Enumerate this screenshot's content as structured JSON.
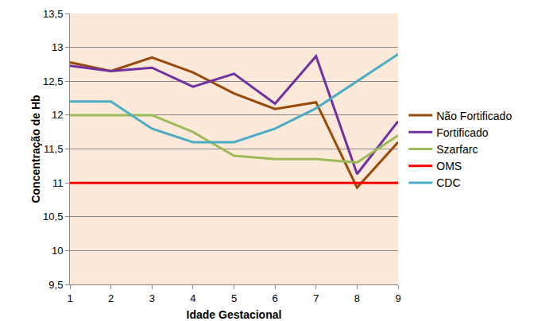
{
  "chart_data": {
    "type": "line",
    "x_label": "Idade Gestacional",
    "y_label": "Concentração de Hb",
    "categories": [
      "1",
      "2",
      "3",
      "4",
      "5",
      "6",
      "7",
      "8",
      "9"
    ],
    "series": [
      {
        "name": "Não Fortificado",
        "color": "#984807",
        "values": [
          12.78,
          12.65,
          12.85,
          12.63,
          12.32,
          12.09,
          12.19,
          10.93,
          11.6
        ]
      },
      {
        "name": "Fortificado",
        "color": "#7030a0",
        "values": [
          12.73,
          12.65,
          12.7,
          12.42,
          12.61,
          12.17,
          12.87,
          11.13,
          11.91
        ]
      },
      {
        "name": "Szarfarc",
        "color": "#9bbb59",
        "values": [
          12.0,
          12.0,
          12.0,
          11.75,
          11.4,
          11.35,
          11.35,
          11.3,
          11.7
        ]
      },
      {
        "name": "OMS",
        "color": "#ff0000",
        "values": [
          11,
          11,
          11,
          11,
          11,
          11,
          11,
          11,
          11
        ]
      },
      {
        "name": "CDC",
        "color": "#4bacc6",
        "values": [
          12.2,
          12.2,
          11.8,
          11.6,
          11.6,
          11.8,
          12.1,
          12.5,
          12.9
        ]
      }
    ],
    "ylim": [
      9.5,
      13.5
    ],
    "yticks": [
      {
        "value": 9.5,
        "label": "9,5"
      },
      10,
      {
        "value": 10.5,
        "label": "10,5"
      },
      11,
      {
        "value": 11.5,
        "label": "11,5"
      },
      12,
      {
        "value": 12.5,
        "label": "12,5"
      },
      13,
      {
        "value": 13.5,
        "label": "13,5"
      }
    ],
    "grid": true,
    "legend": "right"
  }
}
